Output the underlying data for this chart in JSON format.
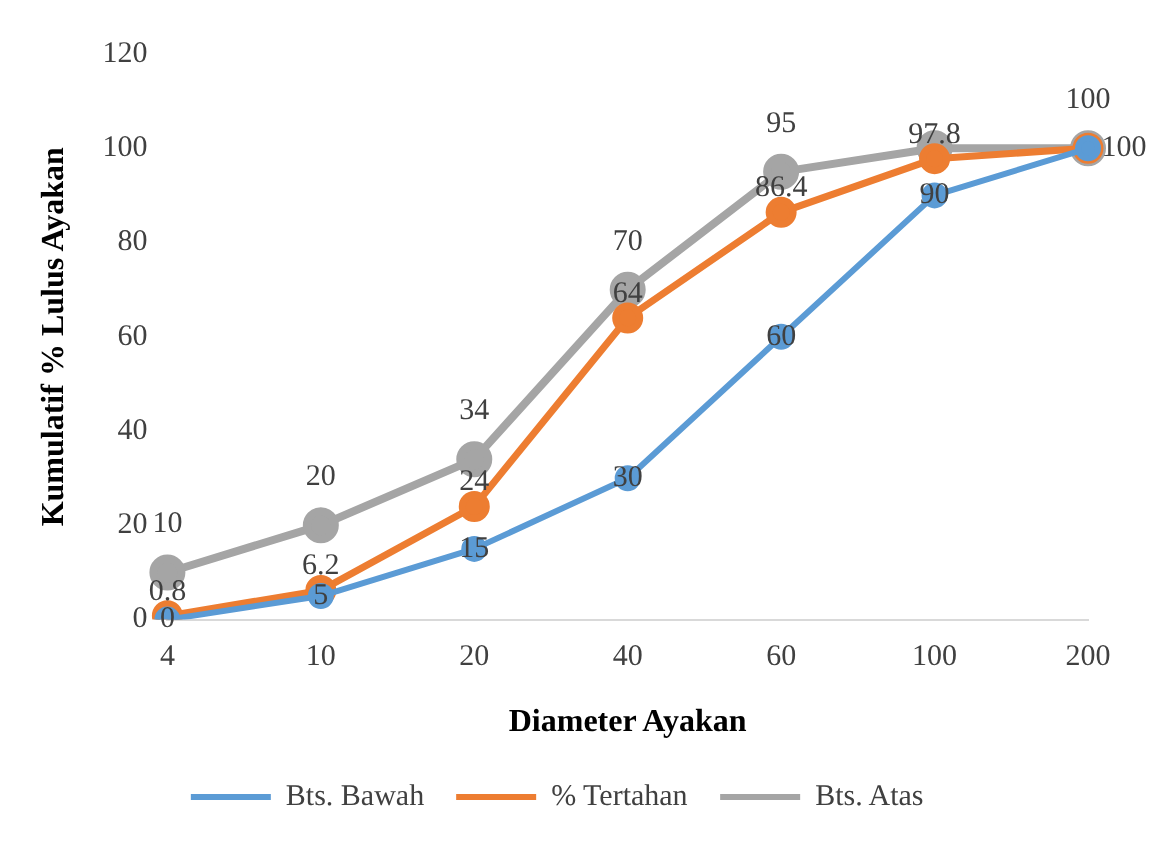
{
  "chart_data": {
    "type": "line",
    "xlabel": "Diameter Ayakan",
    "ylabel": "Kumulatif % Lulus Ayakan",
    "categories": [
      "4",
      "10",
      "20",
      "40",
      "60",
      "100",
      "200"
    ],
    "ylim": [
      0,
      120
    ],
    "yticks": [
      0,
      20,
      40,
      60,
      80,
      100,
      120
    ],
    "grid": false,
    "legend": "bottom",
    "marker": "circle",
    "line_style": "solid",
    "series": [
      {
        "name": "Bts. Bawah",
        "color": "#5b9bd5",
        "values": [
          0,
          5,
          15,
          30,
          60,
          90,
          100
        ],
        "value_labels": [
          "0",
          "5",
          "15",
          "30",
          "60",
          "90",
          null
        ]
      },
      {
        "name": "% Tertahan",
        "color": "#ed7d31",
        "values": [
          0.8,
          6.2,
          24,
          64,
          86.4,
          97.8,
          100
        ],
        "value_labels": [
          "0.8",
          "6.2",
          "24",
          "64",
          "86.4",
          "97.8",
          "100"
        ]
      },
      {
        "name": "Bts. Atas",
        "color": "#a5a5a5",
        "values": [
          10,
          20,
          34,
          70,
          95,
          100,
          100
        ],
        "value_labels": [
          "10",
          "20",
          "34",
          "70",
          "95",
          null,
          "100"
        ]
      }
    ]
  }
}
